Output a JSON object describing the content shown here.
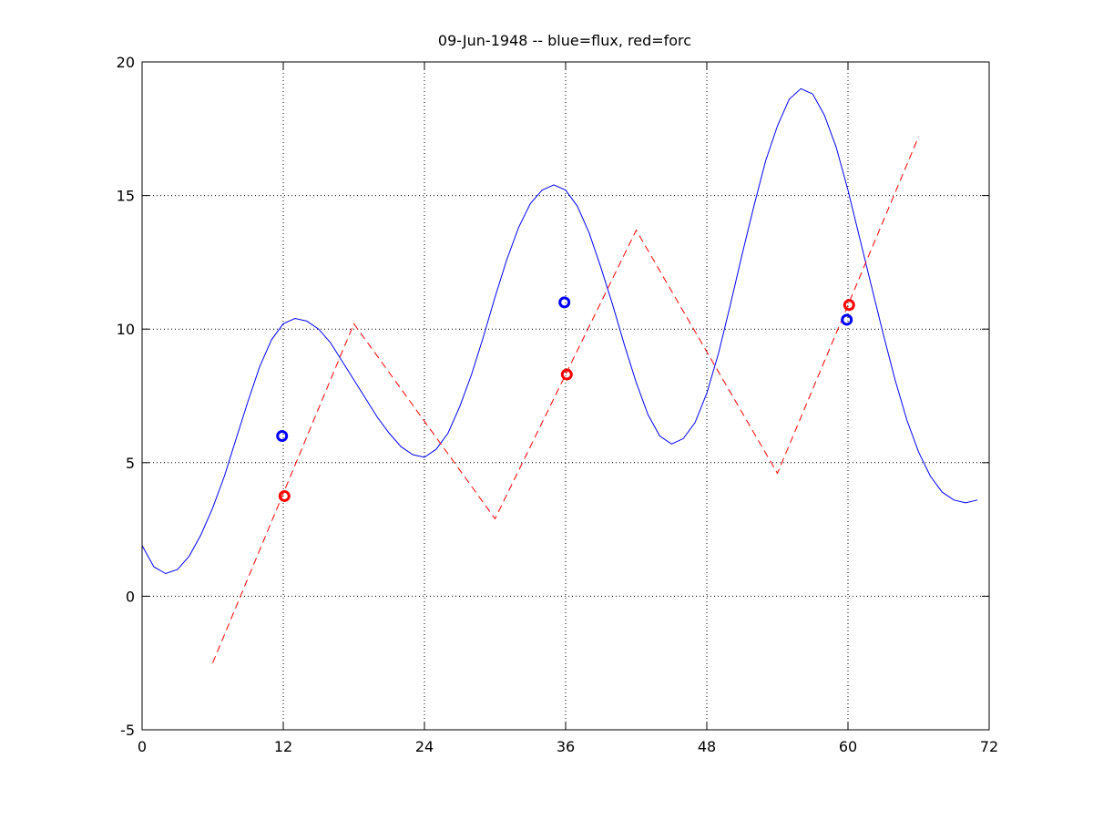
{
  "chart_data": {
    "type": "line",
    "title": "09-Jun-1948 -- blue=flux, red=forc",
    "xlabel": "",
    "ylabel": "",
    "xlim": [
      0,
      72
    ],
    "ylim": [
      -5,
      20
    ],
    "xticks": [
      0,
      12,
      24,
      36,
      48,
      60,
      72
    ],
    "yticks": [
      -5,
      0,
      5,
      10,
      15,
      20
    ],
    "grid": true,
    "colors": {
      "flux": "#0000ff",
      "forc": "#ff0000",
      "axis": "#000000",
      "grid": "#000000"
    },
    "series": [
      {
        "style": "solid",
        "color": "#0000ff",
        "x": [
          0,
          1,
          2,
          3,
          4,
          5,
          6,
          7,
          8,
          9,
          10,
          11,
          12,
          13,
          14,
          15,
          16,
          17,
          18,
          19,
          20,
          21,
          22,
          23,
          24,
          25,
          26,
          27,
          28,
          29,
          30,
          31,
          32,
          33,
          34,
          35,
          36,
          37,
          38,
          39,
          40,
          41,
          42,
          43,
          44,
          45,
          46,
          47,
          48,
          49,
          50,
          51,
          52,
          53,
          54,
          55,
          56,
          57,
          58,
          59,
          60,
          61,
          62,
          63,
          64,
          65,
          66,
          67,
          68,
          69,
          70,
          71
        ],
        "y": [
          1.9,
          1.1,
          0.85,
          1.0,
          1.5,
          2.3,
          3.3,
          4.5,
          5.9,
          7.3,
          8.6,
          9.6,
          10.2,
          10.4,
          10.3,
          10.0,
          9.5,
          8.8,
          8.1,
          7.4,
          6.7,
          6.1,
          5.6,
          5.3,
          5.2,
          5.5,
          6.1,
          7.1,
          8.3,
          9.7,
          11.2,
          12.6,
          13.8,
          14.7,
          15.2,
          15.4,
          15.2,
          14.6,
          13.6,
          12.3,
          10.9,
          9.4,
          8.0,
          6.8,
          6.0,
          5.7,
          5.9,
          6.5,
          7.6,
          9.1,
          10.9,
          12.8,
          14.6,
          16.3,
          17.6,
          18.6,
          19.0,
          18.8,
          18.0,
          16.8,
          15.2,
          13.4,
          11.6,
          9.8,
          8.1,
          6.6,
          5.4,
          4.5,
          3.9,
          3.6,
          3.5,
          3.6
        ]
      },
      {
        "style": "dashed",
        "color": "#ff0000",
        "x": [
          6,
          18,
          30,
          42,
          54,
          66
        ],
        "y": [
          -2.5,
          10.2,
          2.9,
          13.7,
          4.6,
          17.2
        ]
      }
    ],
    "markers": [
      {
        "color": "#0000ff",
        "x": 11.9,
        "y": 6.0
      },
      {
        "color": "#ff0000",
        "x": 12.1,
        "y": 3.75
      },
      {
        "color": "#0000ff",
        "x": 35.9,
        "y": 11.0
      },
      {
        "color": "#ff0000",
        "x": 36.1,
        "y": 8.3
      },
      {
        "color": "#0000ff",
        "x": 59.9,
        "y": 10.35
      },
      {
        "color": "#ff0000",
        "x": 60.1,
        "y": 10.9
      }
    ]
  }
}
